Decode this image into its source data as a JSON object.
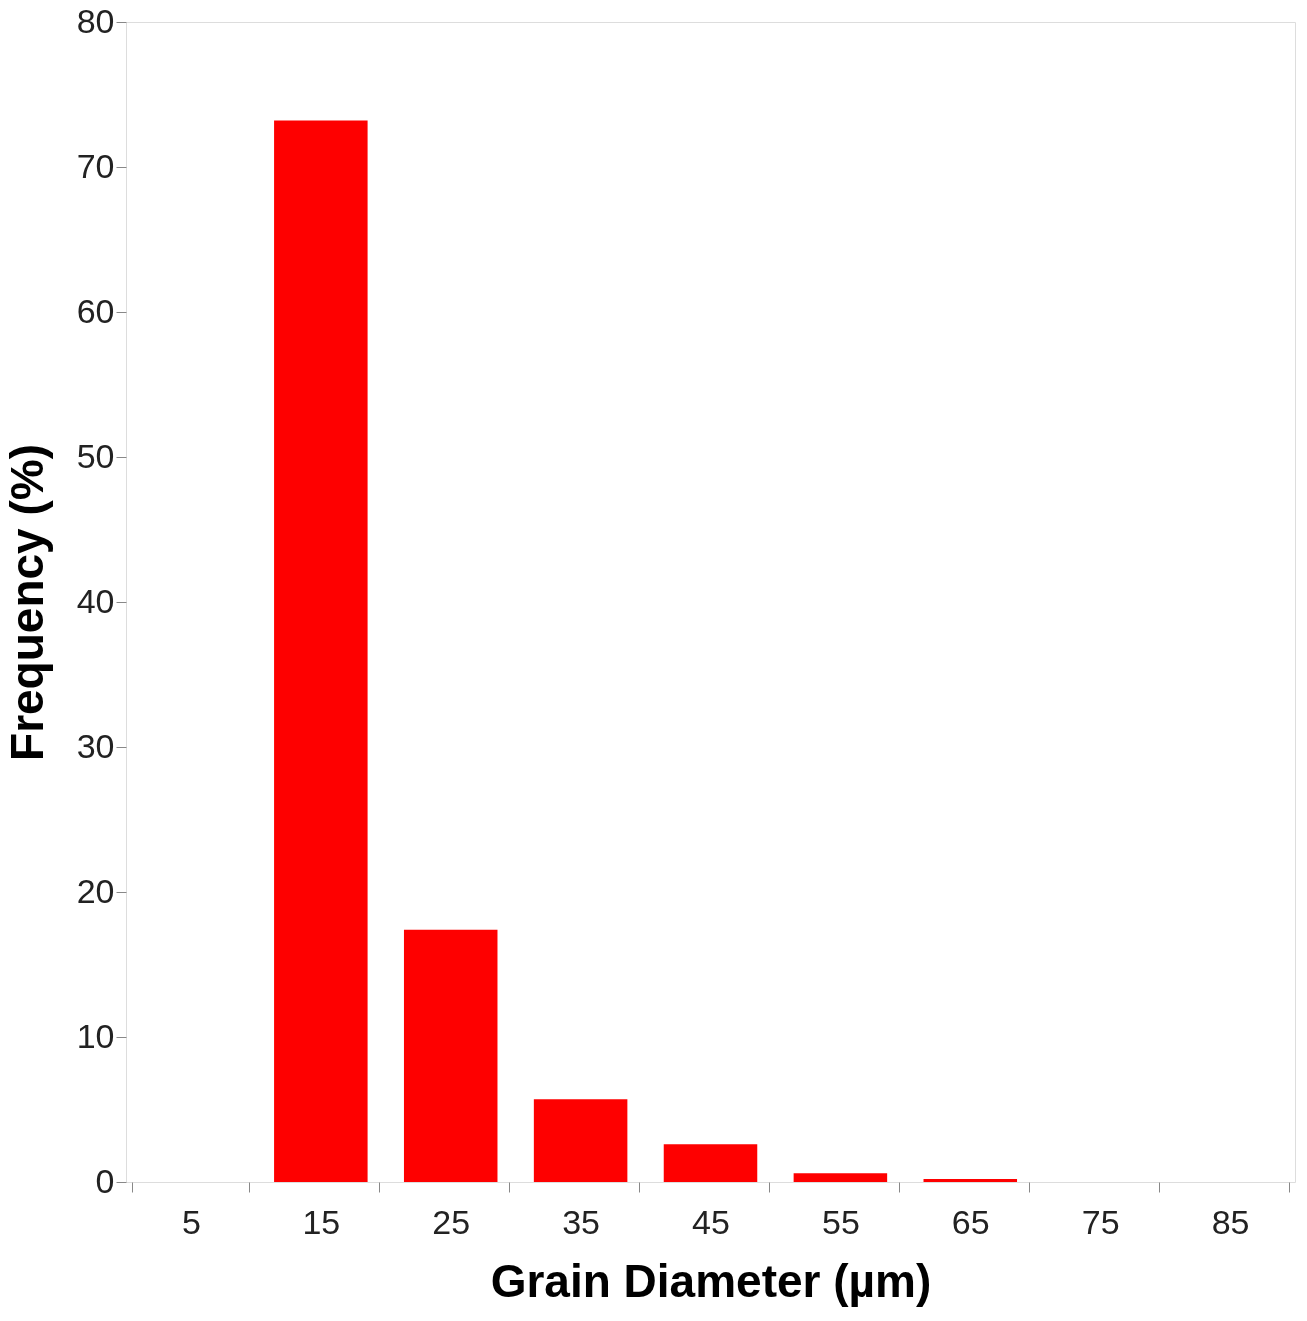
{
  "chart_data": {
    "type": "bar",
    "xlabel": "Grain Diameter (µm)",
    "ylabel": "Frequency (%)",
    "categories": [
      "5",
      "15",
      "25",
      "35",
      "45",
      "55",
      "65",
      "75",
      "85"
    ],
    "values": [
      0,
      73.2,
      17.4,
      5.7,
      2.6,
      0.6,
      0.2,
      0,
      0
    ],
    "color": "#fe0000",
    "ylim": [
      0,
      80
    ],
    "yticks": [
      0,
      10,
      20,
      30,
      40,
      50,
      60,
      70,
      80
    ],
    "grid": false
  }
}
